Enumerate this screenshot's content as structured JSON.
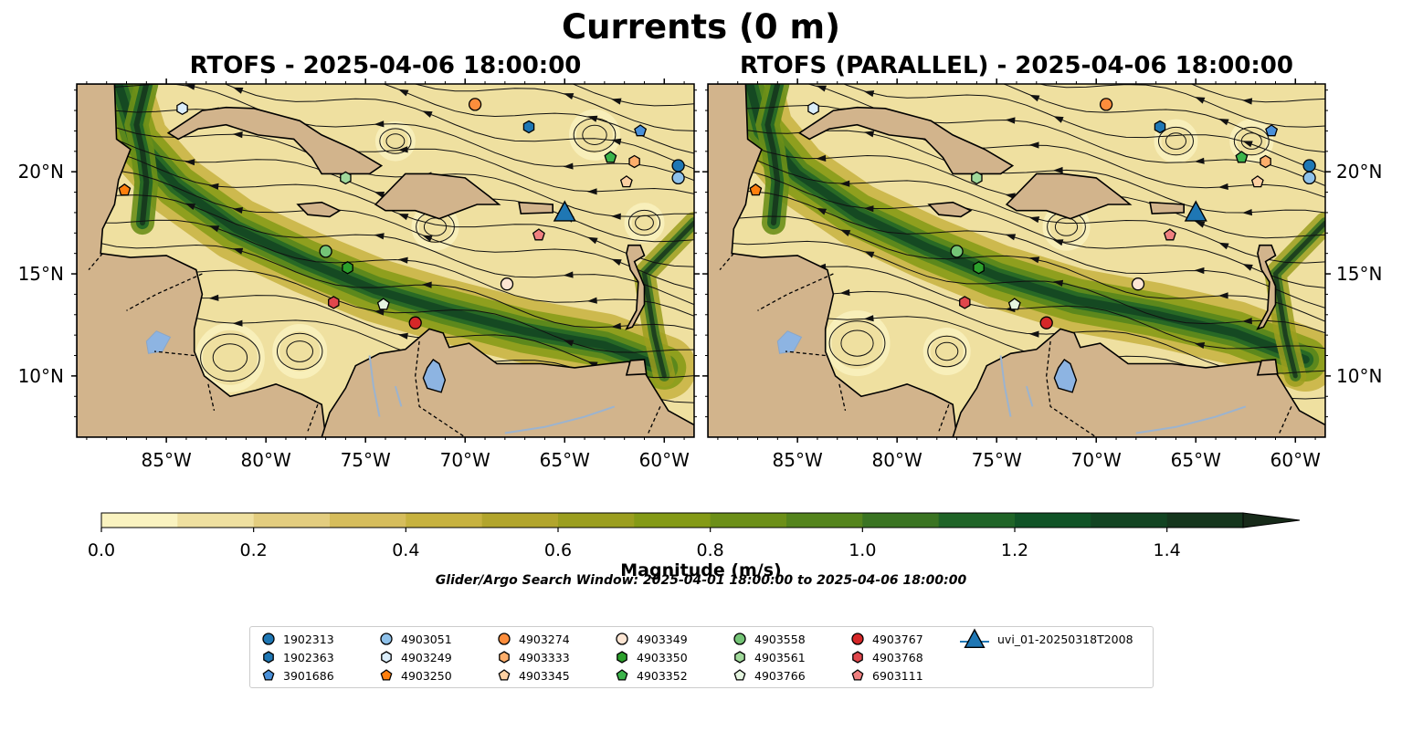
{
  "figure": {
    "title": "Currents (0 m)",
    "search_window": "Glider/Argo Search Window: 2025-04-01 18:00:00 to 2025-04-06 18:00:00"
  },
  "panels": [
    {
      "title": "RTOFS - 2025-04-06 18:00:00"
    },
    {
      "title": "RTOFS (PARALLEL) - 2025-04-06 18:00:00"
    }
  ],
  "axes": {
    "lon_ticks": [
      "85°W",
      "80°W",
      "75°W",
      "70°W",
      "65°W",
      "60°W"
    ],
    "lat_ticks": [
      "20°N",
      "15°N",
      "10°N"
    ],
    "lon_range": [
      -89.5,
      -58.5
    ],
    "lat_range": [
      7.0,
      24.3
    ]
  },
  "colorbar": {
    "label": "Magnitude (m/s)",
    "ticks": [
      "0.0",
      "0.2",
      "0.4",
      "0.6",
      "0.8",
      "1.0",
      "1.2",
      "1.4"
    ],
    "range": [
      0,
      1.5
    ],
    "extend": "max",
    "colors": [
      "#faf3c0",
      "#efe0a0",
      "#e3cd7f",
      "#d6bd5c",
      "#c7b23f",
      "#b2a52c",
      "#9b9e1f",
      "#849a16",
      "#6c8f18",
      "#54841c",
      "#3a7422",
      "#1f6427",
      "#105326",
      "#124422",
      "#15361d",
      "#172a19"
    ]
  },
  "land_color": "#d2b48c",
  "lake_color": "#8db4e2",
  "legend": {
    "items": [
      {
        "label": "1902313",
        "marker": "circle",
        "color": "#1f77b4"
      },
      {
        "label": "1902363",
        "marker": "hexagon",
        "color": "#1f77b4"
      },
      {
        "label": "3901686",
        "marker": "pentagon",
        "color": "#4a90d9"
      },
      {
        "label": "4903051",
        "marker": "circle",
        "color": "#8ec1ea"
      },
      {
        "label": "4903249",
        "marker": "hexagon",
        "color": "#dbeefb"
      },
      {
        "label": "4903250",
        "marker": "pentagon",
        "color": "#ff7f0e"
      },
      {
        "label": "4903274",
        "marker": "circle",
        "color": "#fd8d3c"
      },
      {
        "label": "4903333",
        "marker": "hexagon",
        "color": "#fdae6b"
      },
      {
        "label": "4903345",
        "marker": "pentagon",
        "color": "#fdd0a2"
      },
      {
        "label": "4903349",
        "marker": "circle",
        "color": "#fee6d4"
      },
      {
        "label": "4903350",
        "marker": "hexagon",
        "color": "#2ca02c"
      },
      {
        "label": "4903352",
        "marker": "pentagon",
        "color": "#3cb44b"
      },
      {
        "label": "4903558",
        "marker": "circle",
        "color": "#74c476"
      },
      {
        "label": "4903561",
        "marker": "hexagon",
        "color": "#a1d99b"
      },
      {
        "label": "4903766",
        "marker": "pentagon",
        "color": "#e5f5e0"
      },
      {
        "label": "4903767",
        "marker": "circle",
        "color": "#d62728"
      },
      {
        "label": "4903768",
        "marker": "hexagon",
        "color": "#e0474c"
      },
      {
        "label": "6903111",
        "marker": "pentagon",
        "color": "#f08080"
      },
      {
        "label": "uvi_01-20250318T2008",
        "marker": "triangle",
        "color": "#1f77b4"
      }
    ]
  },
  "platforms": [
    {
      "id": "1902313",
      "panel_a": [
        -59.3,
        20.3
      ],
      "panel_b": [
        -59.3,
        20.3
      ]
    },
    {
      "id": "4903051",
      "panel_a": [
        -59.3,
        19.7
      ],
      "panel_b": [
        -59.3,
        19.7
      ]
    },
    {
      "id": "4903249",
      "panel_a": [
        -84.2,
        23.1
      ],
      "panel_b": [
        -84.2,
        23.1
      ]
    },
    {
      "id": "4903274",
      "panel_a": [
        -69.5,
        23.3
      ],
      "panel_b": [
        -69.5,
        23.3
      ]
    },
    {
      "id": "1902363",
      "panel_a": [
        -66.8,
        22.2
      ],
      "panel_b": [
        -66.8,
        22.2
      ]
    },
    {
      "id": "3901686",
      "panel_a": [
        -61.2,
        22.0
      ],
      "panel_b": [
        -61.2,
        22.0
      ]
    },
    {
      "id": "4903352",
      "panel_a": [
        -62.7,
        20.7
      ],
      "panel_b": [
        -62.7,
        20.7
      ]
    },
    {
      "id": "4903333",
      "panel_a": [
        -61.5,
        20.5
      ],
      "panel_b": [
        -61.5,
        20.5
      ]
    },
    {
      "id": "4903345",
      "panel_a": [
        -61.9,
        19.5
      ],
      "panel_b": [
        -61.9,
        19.5
      ]
    },
    {
      "id": "4903250",
      "panel_a": [
        -87.1,
        19.1
      ],
      "panel_b": [
        -87.1,
        19.1
      ]
    },
    {
      "id": "4903561",
      "panel_a": [
        -76.0,
        19.7
      ],
      "panel_b": [
        -76.0,
        19.7
      ]
    },
    {
      "id": "6903111",
      "panel_a": [
        -66.3,
        16.9
      ],
      "panel_b": [
        -66.3,
        16.9
      ]
    },
    {
      "id": "4903558",
      "panel_a": [
        -77.0,
        16.1
      ],
      "panel_b": [
        -77.0,
        16.1
      ]
    },
    {
      "id": "4903350",
      "panel_a": [
        -75.9,
        15.3
      ],
      "panel_b": [
        -75.9,
        15.3
      ]
    },
    {
      "id": "4903349",
      "panel_a": [
        -67.9,
        14.5
      ],
      "panel_b": [
        -67.9,
        14.5
      ]
    },
    {
      "id": "4903768",
      "panel_a": [
        -76.6,
        13.6
      ],
      "panel_b": [
        -76.6,
        13.6
      ]
    },
    {
      "id": "4903766",
      "panel_a": [
        -74.1,
        13.5
      ],
      "panel_b": [
        -74.1,
        13.5
      ]
    },
    {
      "id": "4903767",
      "panel_a": [
        -72.5,
        12.6
      ],
      "panel_b": [
        -72.5,
        12.6
      ]
    },
    {
      "id": "uvi_01-20250318T2008",
      "panel_a": [
        -65.0,
        18.0
      ],
      "panel_b": [
        -65.0,
        18.0
      ]
    }
  ]
}
